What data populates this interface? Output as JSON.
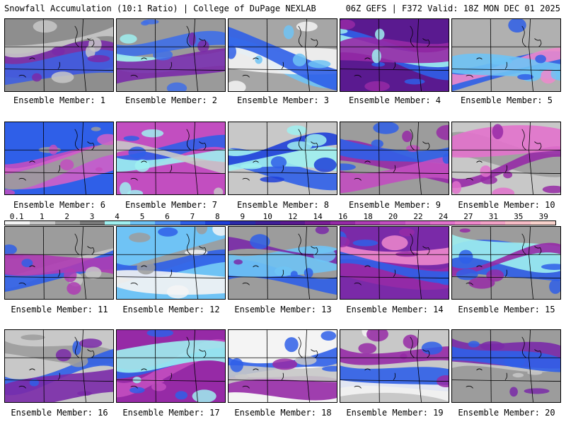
{
  "header": {
    "left": "Snowfall Accumulation (10:1 Ratio) | College of DuPage NEXLAB",
    "right": "06Z GEFS | F372 Valid: 18Z MON DEC 01 2025"
  },
  "colorbar": {
    "labels": [
      "0.1",
      "1",
      "2",
      "3",
      "4",
      "5",
      "6",
      "7",
      "8",
      "9",
      "10",
      "12",
      "14",
      "16",
      "18",
      "20",
      "22",
      "24",
      "27",
      "31",
      "35",
      "39"
    ],
    "colors": [
      "#f4f4f4",
      "#c8c8c8",
      "#9c9c9c",
      "#7a7a7a",
      "#9ff0f0",
      "#6fc3f5",
      "#4f8ff0",
      "#2f5fe8",
      "#1f3fd8",
      "#2a2aa8",
      "#3f1f98",
      "#5a1a90",
      "#7a1e96",
      "#962aa6",
      "#ae3cb4",
      "#c24ec0",
      "#d260c8",
      "#e272cc",
      "#ee88cc",
      "#f2a2c6",
      "#f6bcc6",
      "#f8d2cc"
    ]
  },
  "members": [
    {
      "label": "Ensemble Member: 1"
    },
    {
      "label": "Ensemble Member: 2"
    },
    {
      "label": "Ensemble Member: 3"
    },
    {
      "label": "Ensemble Member: 4"
    },
    {
      "label": "Ensemble Member: 5"
    },
    {
      "label": "Ensemble Member: 6"
    },
    {
      "label": "Ensemble Member: 7"
    },
    {
      "label": "Ensemble Member: 8"
    },
    {
      "label": "Ensemble Member: 9"
    },
    {
      "label": "Ensemble Member: 10"
    },
    {
      "label": "Ensemble Member: 11"
    },
    {
      "label": "Ensemble Member: 12"
    },
    {
      "label": "Ensemble Member: 13"
    },
    {
      "label": "Ensemble Member: 14"
    },
    {
      "label": "Ensemble Member: 15"
    },
    {
      "label": "Ensemble Member: 16"
    },
    {
      "label": "Ensemble Member: 17"
    },
    {
      "label": "Ensemble Member: 18"
    },
    {
      "label": "Ensemble Member: 19"
    },
    {
      "label": "Ensemble Member: 20"
    }
  ]
}
